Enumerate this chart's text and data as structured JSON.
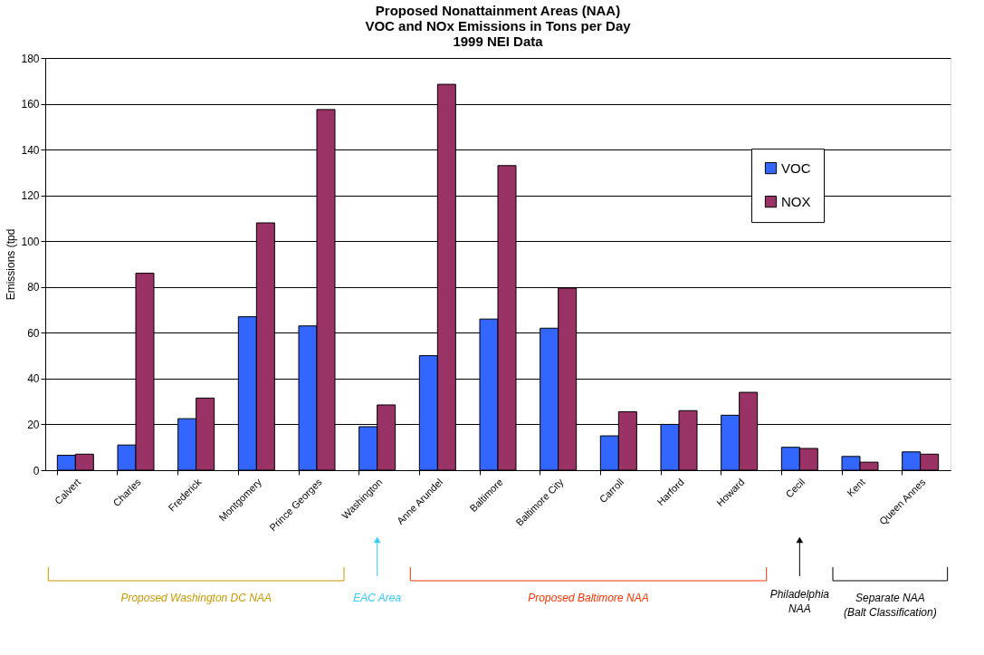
{
  "chart_data": {
    "type": "bar",
    "title": "Proposed Nonattainment Areas (NAA)\nVOC and NOx Emissions in Tons per Day\n1999 NEI Data",
    "ylabel": "Emissions (tpd",
    "categories": [
      "Calvert",
      "Charles",
      "Frederick",
      "Montgomery",
      "Prince Georges",
      "Washington",
      "Anne Arundel",
      "Baltimore",
      "Baltimore City",
      "Carroll",
      "Harford",
      "Howard",
      "Cecil",
      "Kent",
      "Queen Annes"
    ],
    "series": [
      {
        "name": "VOC",
        "color": "#3366ff",
        "values": [
          6.5,
          11,
          22.5,
          67,
          63,
          19,
          50,
          66,
          62,
          15,
          20,
          24,
          10,
          6,
          8
        ]
      },
      {
        "name": "NOX",
        "color": "#993366",
        "values": [
          7,
          86,
          31.5,
          108,
          157.5,
          28.5,
          168.5,
          133,
          79.5,
          25.5,
          26,
          34,
          9.5,
          3.5,
          7
        ]
      }
    ],
    "ylim": [
      0,
      180
    ],
    "yticks": [
      0,
      20,
      40,
      60,
      80,
      100,
      120,
      140,
      160,
      180
    ],
    "grid": "y",
    "legend": "top right",
    "annotations": [
      "Proposed Washington DC NAA",
      "EAC Area",
      "Proposed Baltimore NAA",
      "Philadelphia\nNAA",
      "Separate NAA\n(Balt Classification)"
    ]
  }
}
